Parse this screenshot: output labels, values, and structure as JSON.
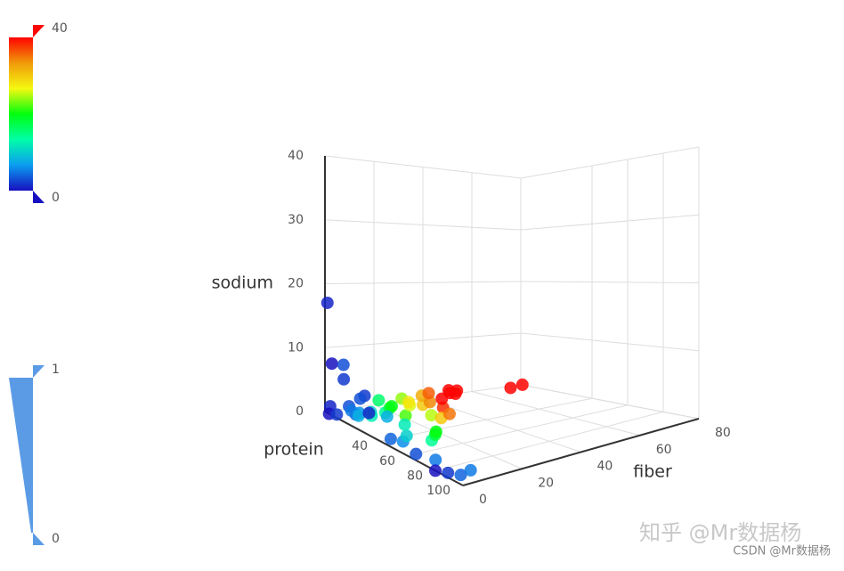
{
  "chart_data": {
    "type": "scatter3d",
    "x_name": "fiber",
    "y_name": "protein",
    "z_name": "sodium",
    "xlim": [
      0,
      80
    ],
    "xticks": [
      0,
      20,
      40,
      60,
      80
    ],
    "ylim": [
      0,
      100
    ],
    "yticks": [
      40,
      60,
      80,
      100
    ],
    "zlim": [
      0,
      40
    ],
    "zticks": [
      0,
      10,
      20,
      30,
      40
    ],
    "grid": true,
    "color_map": {
      "range": [
        0,
        40
      ],
      "dimension": 0,
      "colors": [
        "#1710c0",
        "#0b9df0",
        "#00fea8",
        "#00ff0d",
        "#f5f811",
        "#f09a09",
        "#fe0300"
      ]
    },
    "size_map": {
      "range": [
        0,
        1
      ],
      "color": "#5b9be6"
    },
    "points": [
      [
        1,
        0,
        17
      ],
      [
        0,
        5,
        8
      ],
      [
        3,
        8,
        8
      ],
      [
        2,
        10,
        6
      ],
      [
        1,
        2,
        1
      ],
      [
        0,
        3,
        0
      ],
      [
        2,
        5,
        0
      ],
      [
        3,
        12,
        2
      ],
      [
        4,
        15,
        1
      ],
      [
        5,
        10,
        1
      ],
      [
        6,
        14,
        1
      ],
      [
        8,
        10,
        0
      ],
      [
        10,
        15,
        1
      ],
      [
        12,
        12,
        0
      ],
      [
        14,
        18,
        1
      ],
      [
        16,
        10,
        2
      ],
      [
        18,
        14,
        1
      ],
      [
        20,
        12,
        1
      ],
      [
        22,
        18,
        0
      ],
      [
        24,
        12,
        2
      ],
      [
        26,
        14,
        1
      ],
      [
        28,
        10,
        1
      ],
      [
        30,
        16,
        1
      ],
      [
        32,
        12,
        2
      ],
      [
        34,
        14,
        1
      ],
      [
        36,
        10,
        2
      ],
      [
        38,
        16,
        0
      ],
      [
        40,
        12,
        1
      ],
      [
        42,
        14,
        2
      ],
      [
        44,
        10,
        2
      ],
      [
        46,
        12,
        2
      ],
      [
        48,
        8,
        1
      ],
      [
        62,
        20,
        2
      ],
      [
        68,
        18,
        2
      ],
      [
        4,
        40,
        0
      ],
      [
        6,
        45,
        0
      ],
      [
        10,
        40,
        0
      ],
      [
        14,
        50,
        0
      ],
      [
        18,
        45,
        0
      ],
      [
        20,
        42,
        0
      ],
      [
        3,
        60,
        0
      ],
      [
        5,
        70,
        0
      ],
      [
        2,
        85,
        0
      ],
      [
        4,
        90,
        0
      ],
      [
        5,
        95,
        1
      ],
      [
        0,
        80,
        0
      ],
      [
        1,
        30,
        3
      ],
      [
        2,
        25,
        5
      ],
      [
        3,
        20,
        4
      ],
      [
        8,
        30,
        2
      ],
      [
        12,
        35,
        1
      ],
      [
        25,
        30,
        1
      ],
      [
        30,
        28,
        0
      ],
      [
        35,
        25,
        0
      ]
    ],
    "watermarks": [
      "知乎 @Mr数据杨",
      "CSDN @Mr数据杨"
    ]
  }
}
